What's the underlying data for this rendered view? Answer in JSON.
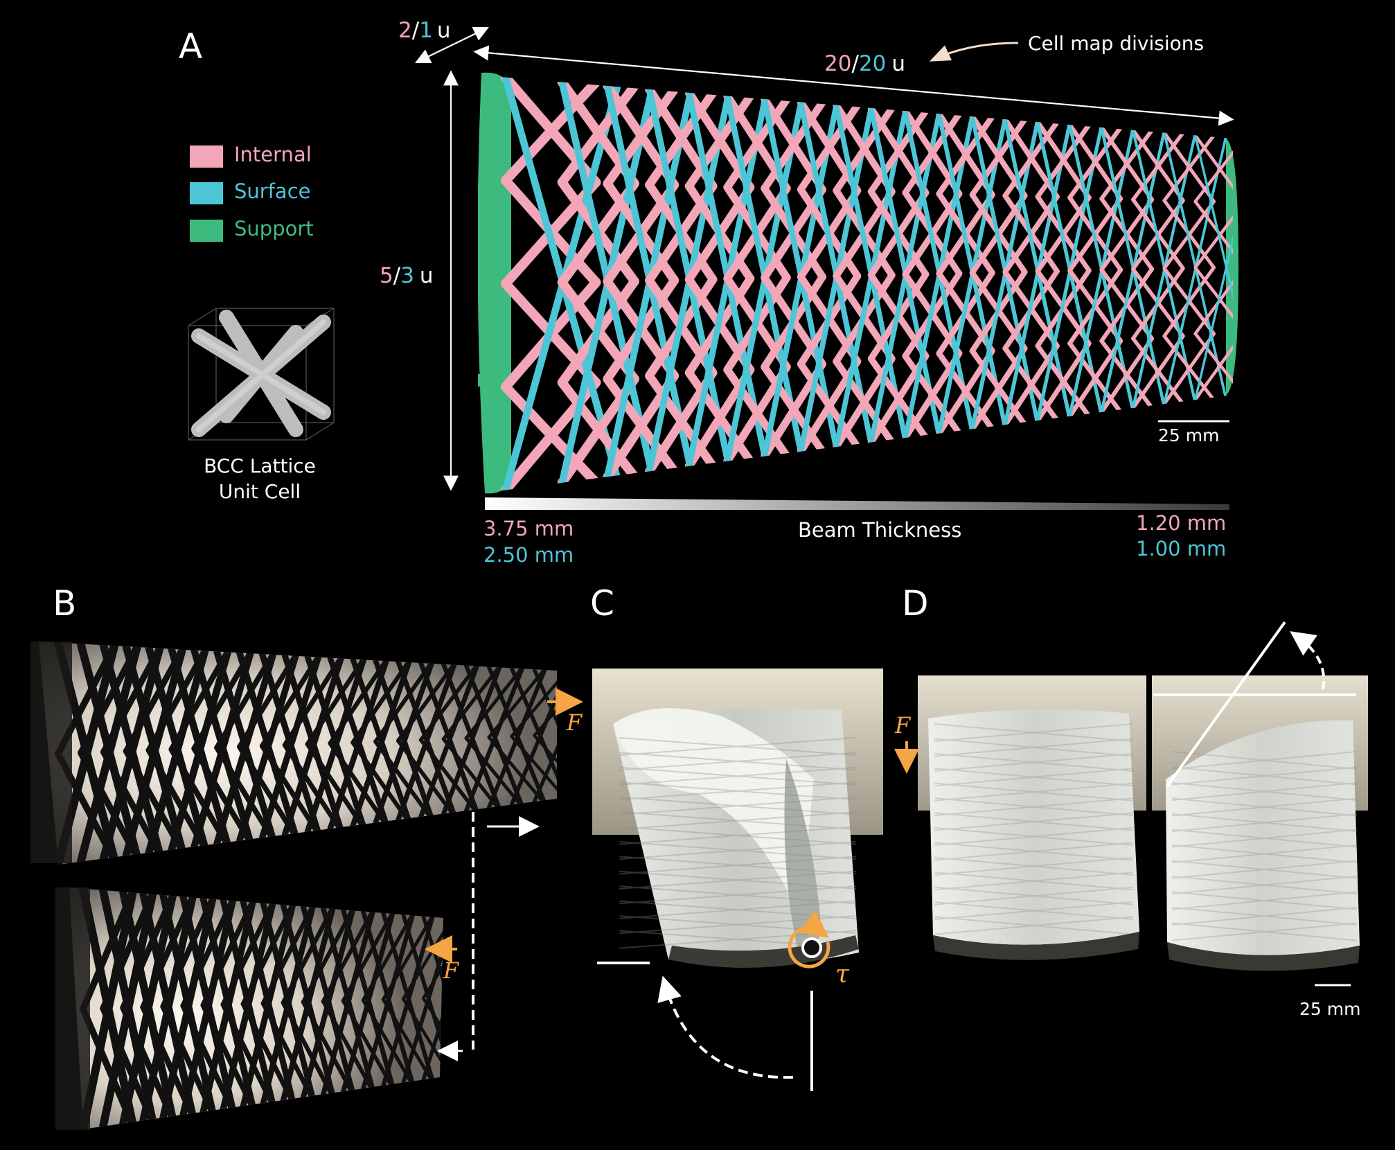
{
  "panels": {
    "a": "A",
    "b": "B",
    "c": "C",
    "d": "D"
  },
  "legend": [
    {
      "label": "Internal",
      "color": "#f2a6b8"
    },
    {
      "label": "Surface",
      "color": "#4cc6d6"
    },
    {
      "label": "Support",
      "color": "#3dbb7f"
    }
  ],
  "unit_cell": {
    "line1": "BCC Lattice",
    "line2": "Unit Cell"
  },
  "dims": {
    "top_left": {
      "pink": "2",
      "slash": "/",
      "cyan": "1",
      "unit": "u"
    },
    "length": {
      "pink": "20",
      "slash": "/",
      "cyan": "20",
      "unit": "u"
    },
    "height": {
      "pink": "5",
      "slash": "/",
      "cyan": "3",
      "unit": "u"
    },
    "cell_map_label": "Cell map divisions"
  },
  "beam": {
    "label": "Beam Thickness",
    "left_internal": "3.75 mm",
    "left_surface": "2.50 mm",
    "right_internal": "1.20 mm",
    "right_surface": "1.00 mm"
  },
  "scale_a": "25 mm",
  "scale_d": "25 mm",
  "force_b_top": "F",
  "force_b_bottom": "F",
  "force_d": "F",
  "torque_c": "τ",
  "colors": {
    "internal": "#f2a6b8",
    "surface": "#4cc6d6",
    "support": "#3dbb7f",
    "annotation_orange": "#f5a544"
  }
}
